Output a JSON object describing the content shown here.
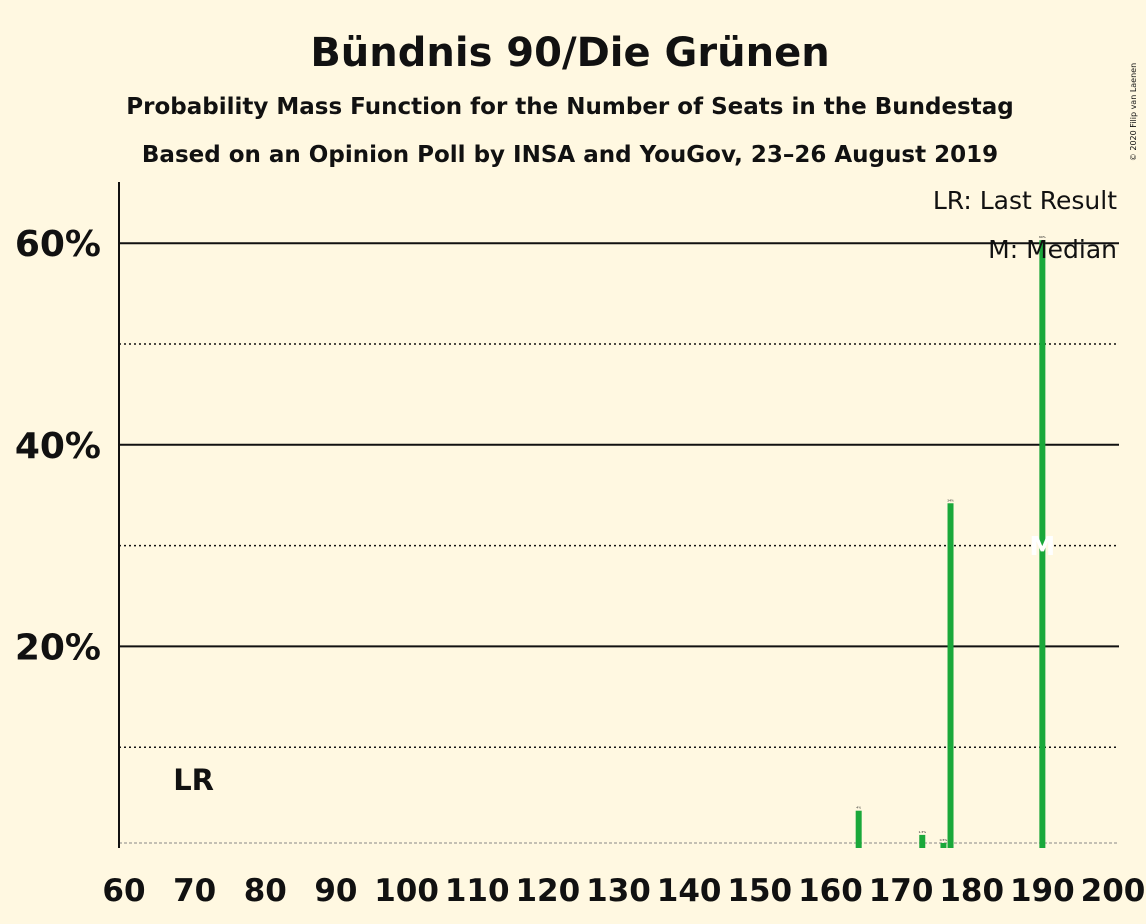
{
  "chart_data": {
    "type": "bar",
    "title": "Bündnis 90/Die Grünen",
    "subtitle": "Probability Mass Function for the Number of Seats in the Bundestag",
    "subtitle2": "Based on an Opinion Poll by INSA and YouGov, 23–26 August 2019",
    "copyright": "© 2020 Filip van Laenen",
    "xlabel": "",
    "ylabel": "",
    "xlim": [
      60,
      200
    ],
    "ylim": [
      0,
      66
    ],
    "x_ticks": [
      "60",
      "70",
      "80",
      "90",
      "100",
      "110",
      "120",
      "130",
      "140",
      "150",
      "160",
      "170",
      "180",
      "190",
      "200"
    ],
    "y_ticks": [
      "20%",
      "40%",
      "60%"
    ],
    "grid_solid": [
      20,
      40,
      60
    ],
    "grid_dotted": [
      10,
      30,
      50
    ],
    "threshold_line": 0.5,
    "bar_color": "#1aa83a",
    "points": [
      {
        "x": 164,
        "y": 3.7,
        "label": "4%"
      },
      {
        "x": 173,
        "y": 1.3,
        "label": "1.3%"
      },
      {
        "x": 176,
        "y": 0.5,
        "label": "0.5%"
      },
      {
        "x": 177,
        "y": 34.2,
        "label": "34%"
      },
      {
        "x": 190,
        "y": 60.3,
        "label": "60%"
      }
    ],
    "last_result": {
      "x": 63,
      "label": "LR"
    },
    "median": {
      "x": 190,
      "label": "M"
    },
    "legend": [
      "LR: Last Result",
      "M: Median"
    ],
    "legend_position": "top-right"
  }
}
